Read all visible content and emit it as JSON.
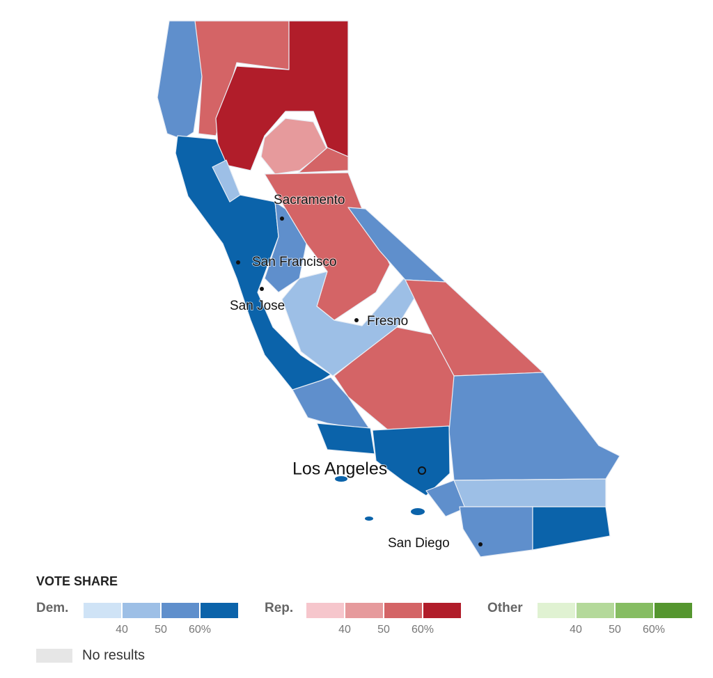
{
  "map": {
    "cities": [
      "Sacramento",
      "San Francisco",
      "San Jose",
      "Fresno",
      "Los Angeles",
      "San Diego"
    ]
  },
  "legend": {
    "title": "VOTE SHARE",
    "groups": [
      {
        "label": "Dem.",
        "colors": [
          "#cfe3f6",
          "#9dbfe6",
          "#5f8fcc",
          "#0b63aa"
        ],
        "ticks": [
          "40",
          "50",
          "60%"
        ]
      },
      {
        "label": "Rep.",
        "colors": [
          "#f6c6cc",
          "#e69a9c",
          "#d46466",
          "#b11d2a"
        ],
        "ticks": [
          "40",
          "50",
          "60%"
        ]
      },
      {
        "label": "Other",
        "colors": [
          "#e0f2d2",
          "#b4d99a",
          "#86bd62",
          "#55962f"
        ],
        "ticks": [
          "40",
          "50",
          "60%"
        ]
      }
    ],
    "no_results": {
      "label": "No results",
      "color": "#e6e6e6"
    }
  }
}
